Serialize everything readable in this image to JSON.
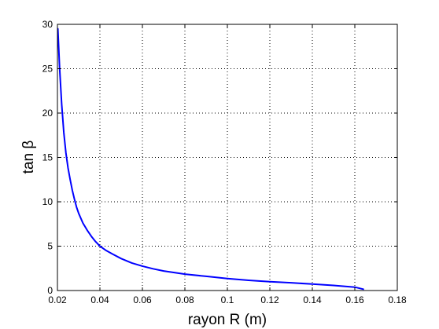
{
  "chart_data": {
    "type": "line",
    "title": "",
    "xlabel": "rayon R (m)",
    "ylabel": "tan β",
    "xlim": [
      0.02,
      0.18
    ],
    "ylim": [
      0,
      30
    ],
    "xticks": [
      0.02,
      0.04,
      0.06,
      0.08,
      0.1,
      0.12,
      0.14,
      0.16,
      0.18
    ],
    "xtick_labels": [
      "0.02",
      "0.04",
      "0.06",
      "0.08",
      "0.1",
      "0.12",
      "0.14",
      "0.16",
      "0.18"
    ],
    "yticks": [
      0,
      5,
      10,
      15,
      20,
      25,
      30
    ],
    "ytick_labels": [
      "0",
      "5",
      "10",
      "15",
      "20",
      "25",
      "30"
    ],
    "grid": true,
    "grid_style": "dotted",
    "series": [
      {
        "color": "#0000ff",
        "x": [
          0.0202,
          0.021,
          0.022,
          0.023,
          0.024,
          0.025,
          0.026,
          0.027,
          0.028,
          0.029,
          0.03,
          0.032,
          0.034,
          0.036,
          0.038,
          0.04,
          0.043,
          0.046,
          0.05,
          0.055,
          0.06,
          0.065,
          0.07,
          0.08,
          0.09,
          0.1,
          0.11,
          0.12,
          0.13,
          0.14,
          0.15,
          0.155,
          0.16,
          0.164
        ],
        "y": [
          29.5,
          25.2,
          21.0,
          17.8,
          15.5,
          13.8,
          12.5,
          11.3,
          10.3,
          9.4,
          8.7,
          7.6,
          6.8,
          6.1,
          5.5,
          5.0,
          4.5,
          4.1,
          3.6,
          3.1,
          2.75,
          2.45,
          2.2,
          1.85,
          1.6,
          1.35,
          1.15,
          1.0,
          0.87,
          0.73,
          0.58,
          0.48,
          0.38,
          0.15
        ]
      }
    ]
  }
}
